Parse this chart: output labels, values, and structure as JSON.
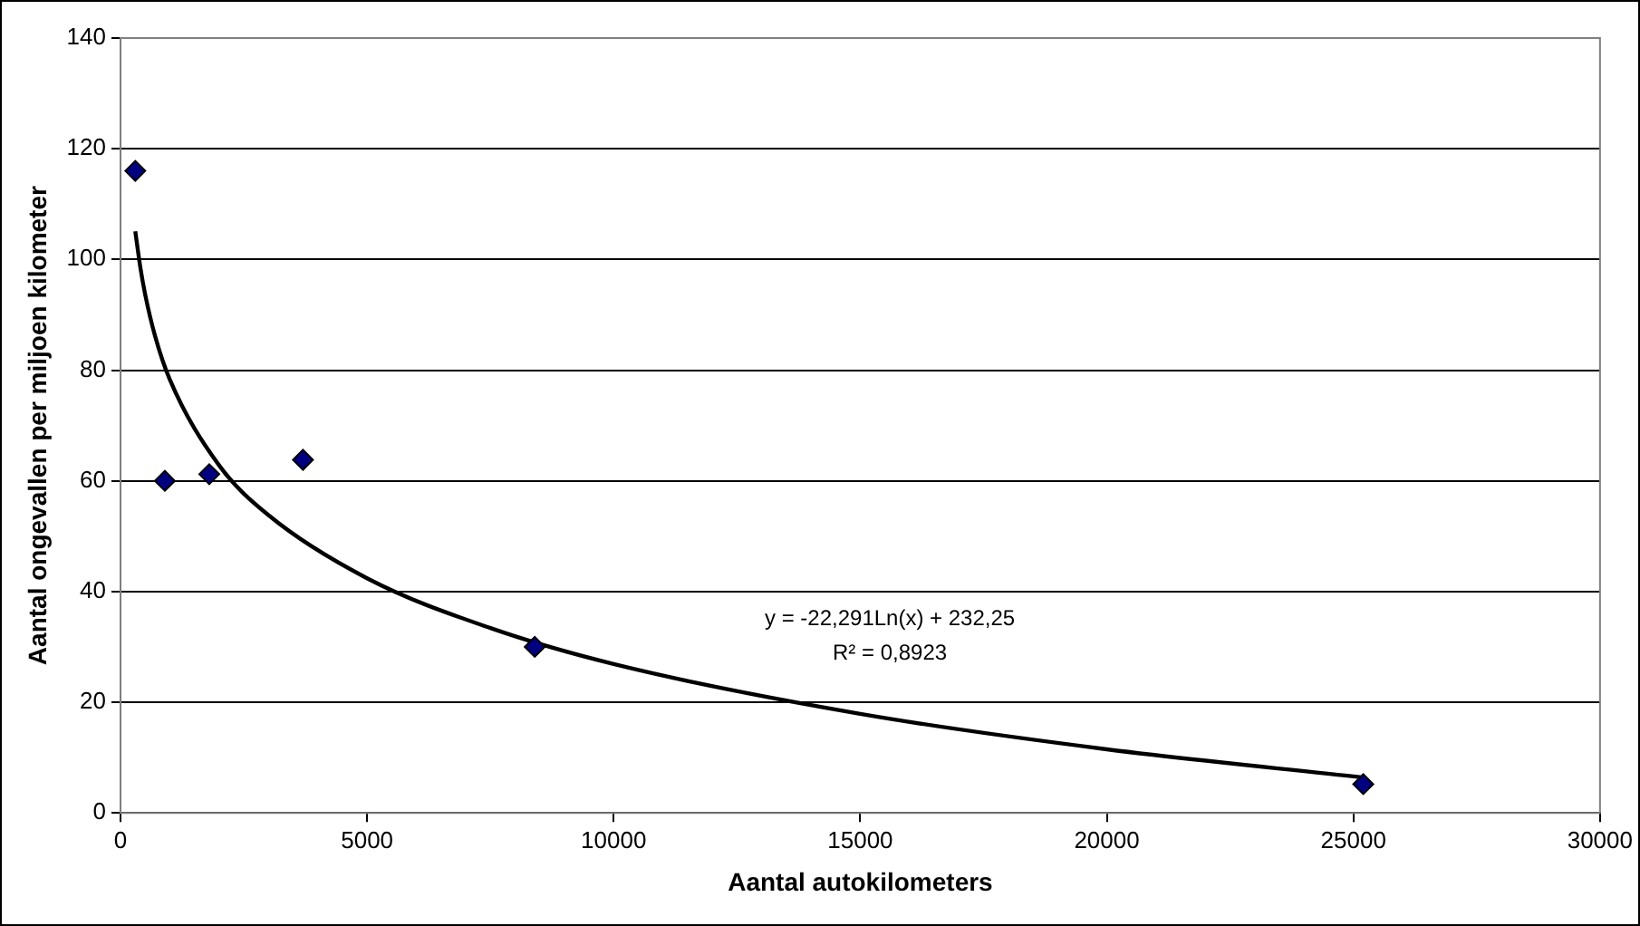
{
  "chart_data": {
    "type": "scatter",
    "xlabel": "Aantal autokilometers",
    "ylabel": "Aantal ongevallen per miljoen kilometer",
    "xlim": [
      0,
      30000
    ],
    "xticks": [
      0,
      5000,
      10000,
      15000,
      20000,
      25000,
      30000
    ],
    "ylim": [
      0,
      140
    ],
    "yticks": [
      0,
      20,
      40,
      60,
      80,
      100,
      120,
      140
    ],
    "grid": "y",
    "legend": false,
    "marker": "diamond",
    "series": [
      {
        "color": "#000080",
        "x": [
          300,
          900,
          1800,
          3700,
          8400,
          25200
        ],
        "values": [
          116,
          60,
          61.2,
          63.8,
          30,
          5.2
        ]
      },
      {
        "type": "line",
        "color": "#000000",
        "marker": "none",
        "x": [
          300,
          400,
          500,
          700,
          1000,
          2000,
          3000,
          5000,
          7500,
          10000,
          15000,
          20000,
          25200
        ],
        "values": [
          105.1,
          98.7,
          93.7,
          86.2,
          78.3,
          62.8,
          53.8,
          42.4,
          33.4,
          26.9,
          17.9,
          11.5,
          6.4
        ]
      }
    ],
    "annotations": [
      "y = -22,291Ln(x) + 232,25",
      "R² = 0,8923"
    ]
  }
}
